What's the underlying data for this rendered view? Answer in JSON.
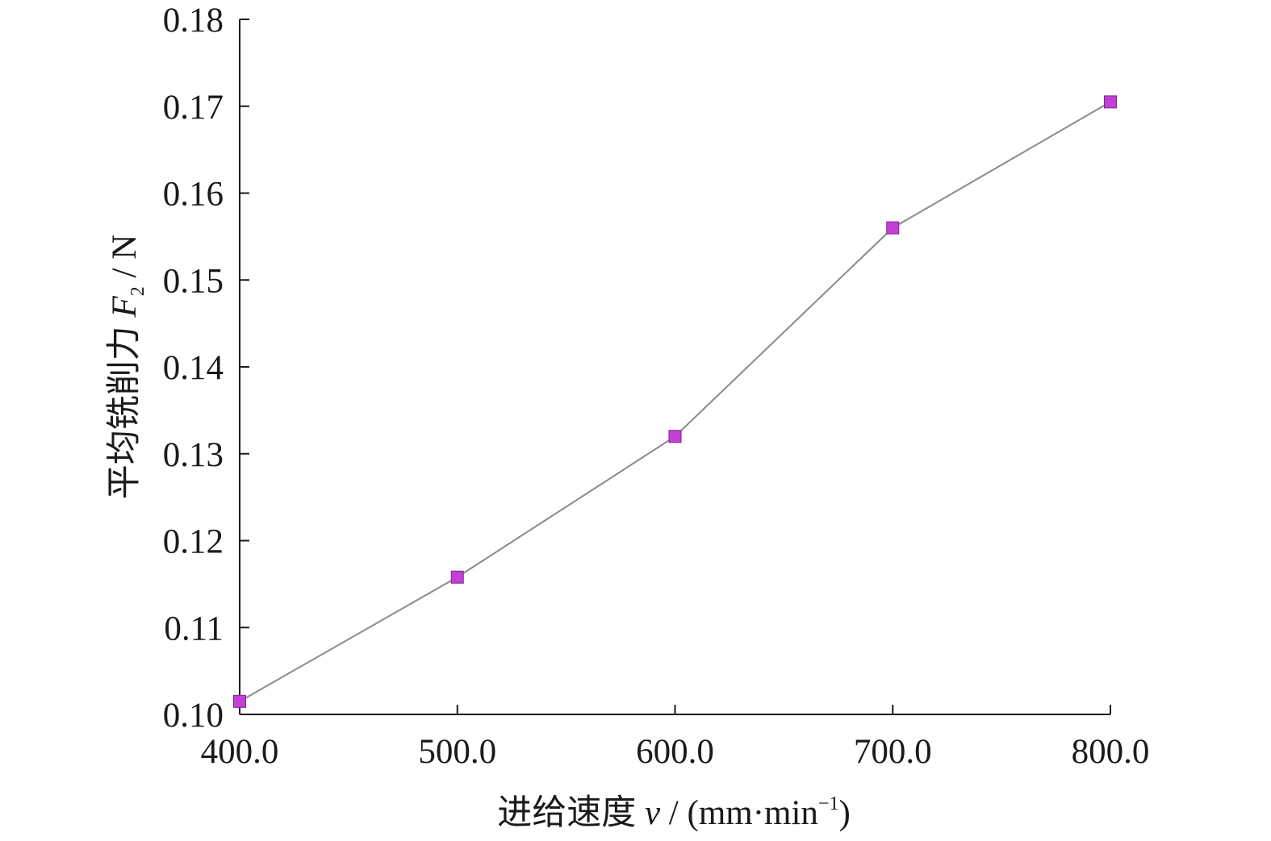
{
  "chart_data": {
    "type": "line",
    "x": [
      400.0,
      500.0,
      600.0,
      700.0,
      800.0
    ],
    "series": [
      {
        "values": [
          0.1015,
          0.1158,
          0.132,
          0.156,
          0.1705
        ],
        "marker": "square",
        "marker_color": "#C43FD6",
        "line_color": "#8A8A8A"
      }
    ],
    "xlim": [
      400.0,
      800.0
    ],
    "ylim": [
      0.1,
      0.18
    ],
    "x_ticks": [
      "400.0",
      "500.0",
      "600.0",
      "700.0",
      "800.0"
    ],
    "y_ticks": [
      "0.10",
      "0.11",
      "0.12",
      "0.13",
      "0.14",
      "0.15",
      "0.16",
      "0.17",
      "0.18"
    ],
    "xlabel": {
      "prefix": "进给速度 ",
      "var": "v",
      "mid": " / (mm·min",
      "sup": "−1",
      "suffix": ")"
    },
    "ylabel": {
      "prefix": "平均铣削力 ",
      "var": "F",
      "sub": "2",
      "suffix": " / N"
    },
    "grid": false,
    "legend": "none"
  }
}
